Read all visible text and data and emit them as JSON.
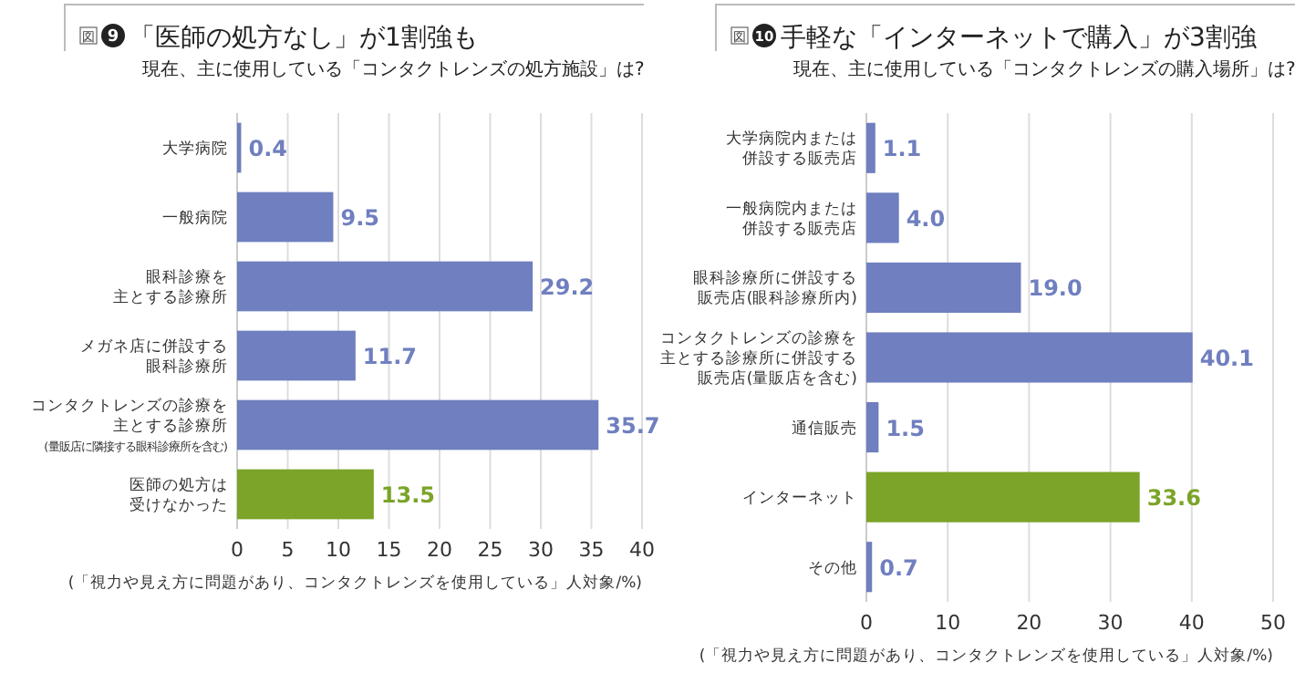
{
  "chart_data": [
    {
      "type": "bar",
      "orientation": "horizontal",
      "title": "「医師の処方なし」が1割強も",
      "subtitle": "現在、主に使用している「コンタクトレンズの処方施設」は?",
      "categories": [
        "大学病院",
        "一般病院",
        "眼科診療を主とする診療所",
        "メガネ店に併設する眼科診療所",
        "コンタクトレンズの診療を主とする診療所(量販店に隣接する眼科診療所を含む)",
        "医師の処方は受けなかった"
      ],
      "values": [
        0.4,
        9.5,
        29.2,
        11.7,
        35.7,
        13.5
      ],
      "value_labels": [
        "0.4",
        "9.5",
        "29.2",
        "11.7",
        "35.7",
        "13.5"
      ],
      "colors": [
        "#6f7fbf",
        "#6f7fbf",
        "#6f7fbf",
        "#6f7fbf",
        "#6f7fbf",
        "#7ba428"
      ],
      "xlim": [
        0,
        40
      ],
      "xticks": [
        0,
        5,
        10,
        15,
        20,
        25,
        30,
        35,
        40
      ],
      "grid": "x",
      "annotations": [
        "図",
        "9",
        "(「視力や見え方に問題があり、コンタクトレンズを使用している」人対象/%)"
      ]
    },
    {
      "type": "bar",
      "orientation": "horizontal",
      "title": "手軽な「インターネットで購入」が3割強",
      "subtitle": "現在、主に使用している「コンタクトレンズの購入場所」は?",
      "categories": [
        "大学病院内または併設する販売店",
        "一般病院内または併設する販売店",
        "眼科診療所に併設する販売店(眼科診療所内)",
        "コンタクトレンズの診療を主とする診療所に併設する販売店(量販店を含む)",
        "通信販売",
        "インターネット",
        "その他"
      ],
      "values": [
        1.1,
        4.0,
        19.0,
        40.1,
        1.5,
        33.6,
        0.7
      ],
      "value_labels": [
        "1.1",
        "4.0",
        "19.0",
        "40.1",
        "1.5",
        "33.6",
        "0.7"
      ],
      "colors": [
        "#6f7fbf",
        "#6f7fbf",
        "#6f7fbf",
        "#6f7fbf",
        "#6f7fbf",
        "#7ba428",
        "#6f7fbf"
      ],
      "xlim": [
        0,
        50
      ],
      "xticks": [
        0,
        10,
        20,
        30,
        40,
        50
      ],
      "grid": "x",
      "annotations": [
        "図",
        "10",
        "(「視力や見え方に問題があり、コンタクトレンズを使用している」人対象/%)"
      ]
    }
  ]
}
